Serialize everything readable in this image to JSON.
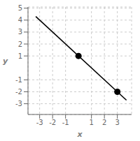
{
  "chart_data": {
    "type": "line",
    "xlabel": "x",
    "ylabel": "y",
    "xlim": [
      -3.9,
      4.1
    ],
    "ylim": [
      -3.9,
      5.1
    ],
    "xticks": [
      -3,
      -2,
      -1,
      1,
      2,
      3
    ],
    "yticks": [
      -3,
      -2,
      -1,
      1,
      2,
      3,
      4,
      5
    ],
    "grid": true,
    "series": [
      {
        "type": "line",
        "color": "#000000",
        "line_style": "solid",
        "x": [
          -3.3,
          3.7
        ],
        "values": [
          4.3,
          -2.7
        ]
      },
      {
        "type": "scatter",
        "color": "#000000",
        "marker": "o",
        "x": [
          0,
          3
        ],
        "values": [
          1,
          -2
        ]
      }
    ]
  }
}
